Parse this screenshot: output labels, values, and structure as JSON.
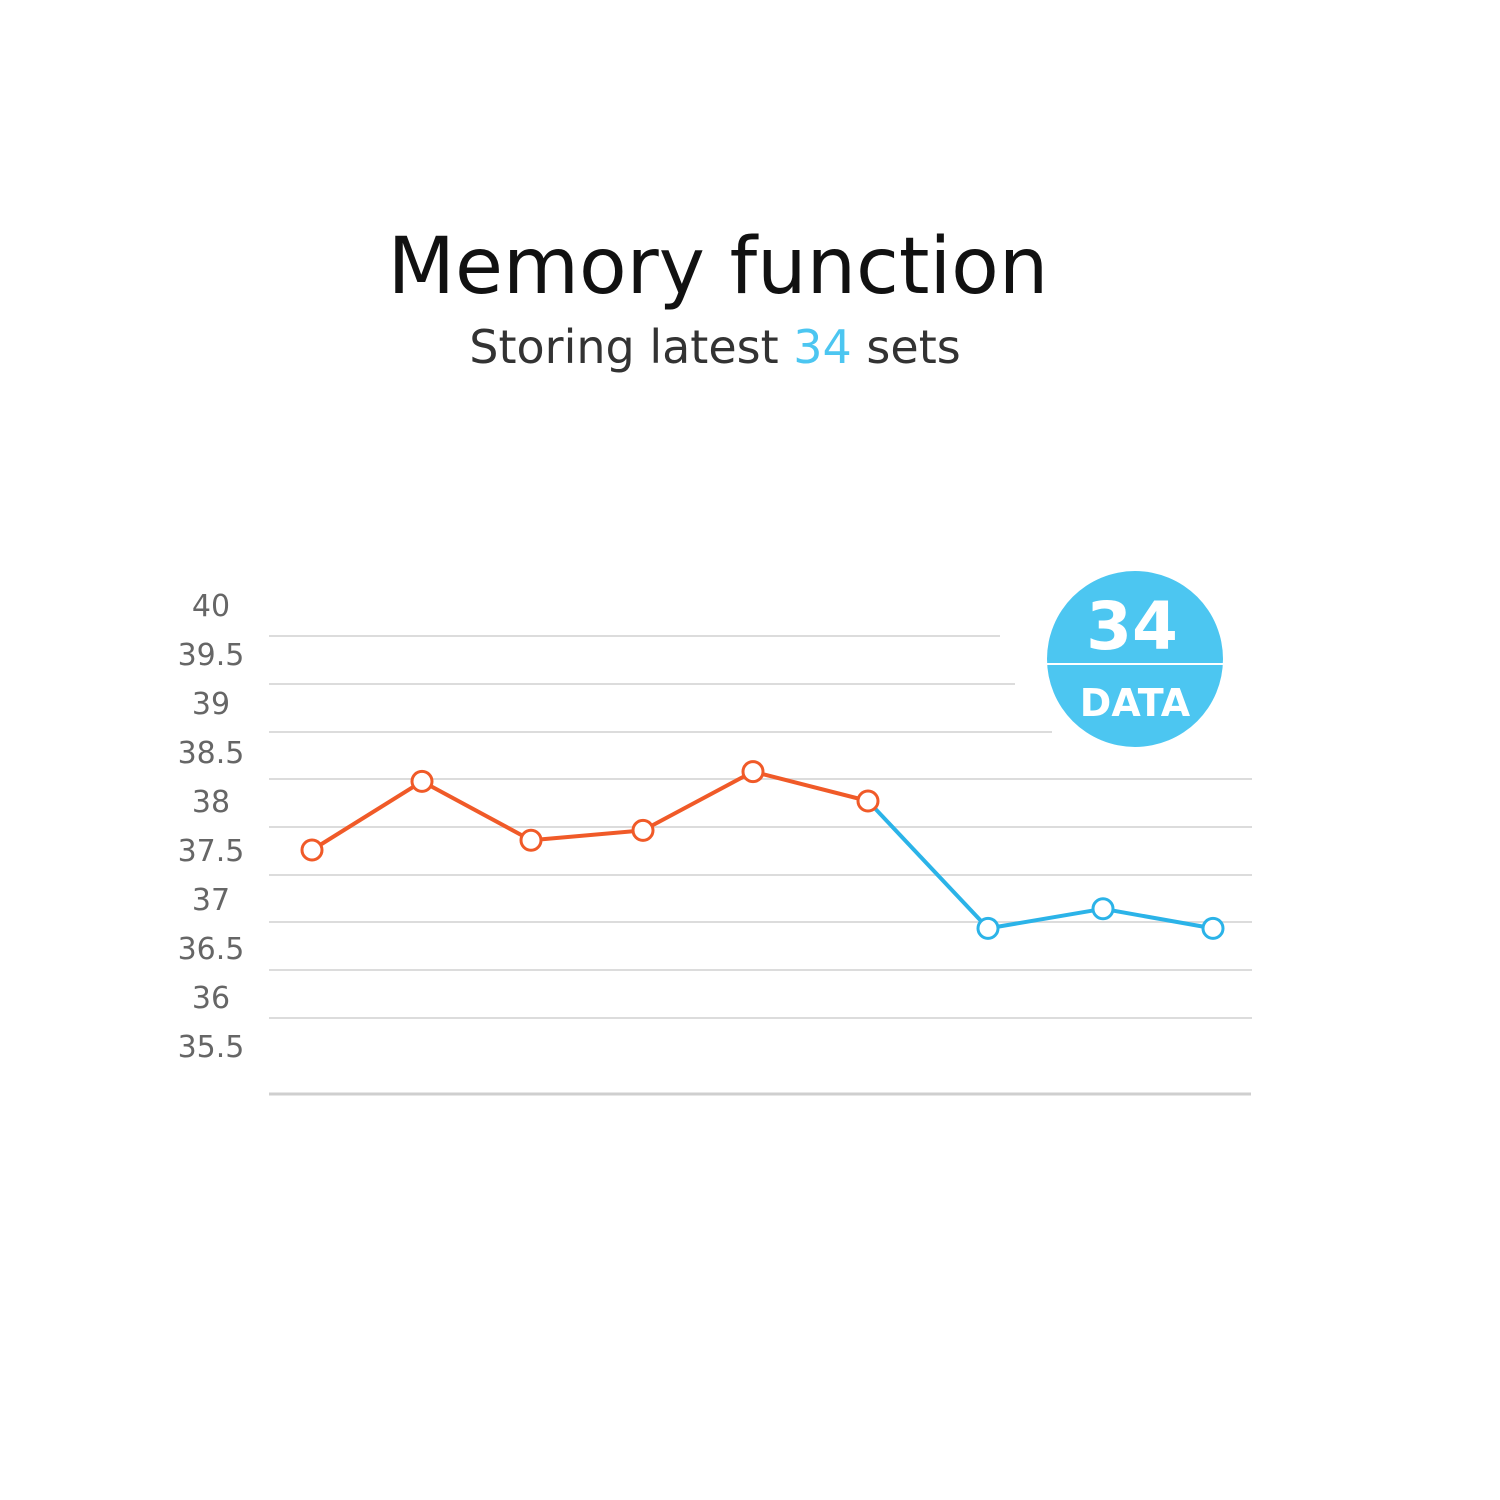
{
  "title": "Memory function",
  "subtitle": {
    "prefix": "Storing latest ",
    "highlight": "34",
    "suffix": " sets"
  },
  "badge": {
    "number": "34",
    "label": "DATA"
  },
  "colors": {
    "high": "#f05a28",
    "normal": "#2bb3e8",
    "badge": "#4cc6f1",
    "grid": "#dcdcdc",
    "highlight": "#4cc6f1"
  },
  "chart_data": {
    "type": "line",
    "title": "",
    "xlabel": "",
    "ylabel": "",
    "ylim": [
      35.5,
      40
    ],
    "y_ticks": [
      "40",
      "39.5",
      "39",
      "38.5",
      "38",
      "37.5",
      "37",
      "36.5",
      "36",
      "35.5"
    ],
    "grid": true,
    "values": [
      37.5,
      38.2,
      37.6,
      37.7,
      38.3,
      38.0,
      36.7,
      36.9,
      36.7
    ],
    "segment_colors": [
      "high",
      "high",
      "high",
      "high",
      "high",
      "high",
      "normal",
      "normal",
      "normal"
    ]
  }
}
